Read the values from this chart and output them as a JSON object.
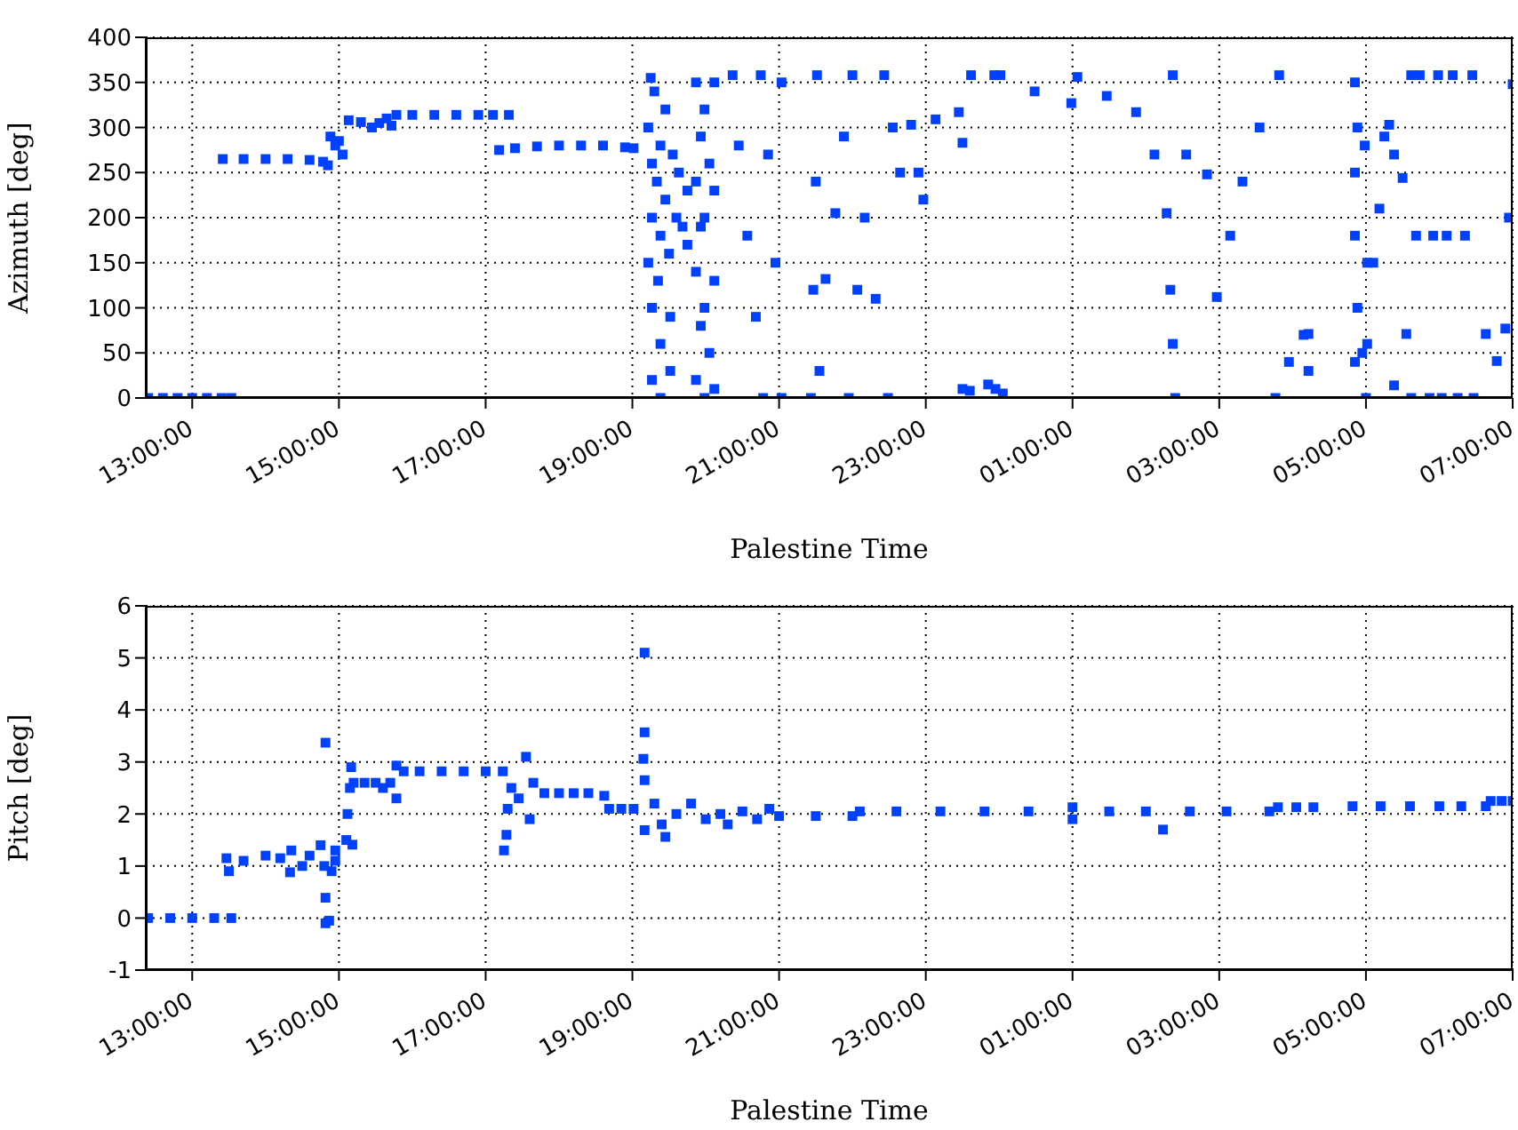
{
  "chart_data": [
    {
      "type": "scatter",
      "ylabel": "Azimuth [deg]",
      "xlabel": "Palestine Time",
      "color": "#0040ff",
      "marker": "square",
      "grid": true,
      "xlim": [
        "2000-01-01T12:22",
        "2000-01-02T07:00"
      ],
      "ylim": [
        0,
        400
      ],
      "yticks": [
        0,
        50,
        100,
        150,
        200,
        250,
        300,
        350,
        400
      ],
      "xticks": [
        {
          "value": "2000-01-01T13:00",
          "label": "13:00:00"
        },
        {
          "value": "2000-01-01T15:00",
          "label": "15:00:00"
        },
        {
          "value": "2000-01-01T17:00",
          "label": "17:00:00"
        },
        {
          "value": "2000-01-01T19:00",
          "label": "19:00:00"
        },
        {
          "value": "2000-01-01T21:00",
          "label": "21:00:00"
        },
        {
          "value": "2000-01-01T23:00",
          "label": "23:00:00"
        },
        {
          "value": "2000-01-02T01:00",
          "label": "01:00:00"
        },
        {
          "value": "2000-01-02T03:00",
          "label": "03:00:00"
        },
        {
          "value": "2000-01-02T05:00",
          "label": "05:00:00"
        },
        {
          "value": "2000-01-02T07:00",
          "label": "07:00:00"
        }
      ],
      "x": [
        "2000-01-01T12:24",
        "2000-01-01T12:36",
        "2000-01-01T12:48",
        "2000-01-01T13:00",
        "2000-01-01T13:12",
        "2000-01-01T13:24",
        "2000-01-01T13:32",
        "2000-01-01T13:25",
        "2000-01-01T13:42",
        "2000-01-01T14:00",
        "2000-01-01T14:18",
        "2000-01-01T14:36",
        "2000-01-01T14:47",
        "2000-01-01T14:51",
        "2000-01-01T14:53",
        "2000-01-01T14:57",
        "2000-01-01T15:00",
        "2000-01-01T15:03",
        "2000-01-01T15:08",
        "2000-01-01T15:18",
        "2000-01-01T15:27",
        "2000-01-01T15:33",
        "2000-01-01T15:43",
        "2000-01-01T15:39",
        "2000-01-01T15:47",
        "2000-01-01T16:00",
        "2000-01-01T16:18",
        "2000-01-01T16:36",
        "2000-01-01T16:54",
        "2000-01-01T17:06",
        "2000-01-01T17:19",
        "2000-01-01T17:11",
        "2000-01-01T17:24",
        "2000-01-01T17:42",
        "2000-01-01T18:00",
        "2000-01-01T18:18",
        "2000-01-01T18:36",
        "2000-01-01T18:54",
        "2000-01-01T19:01",
        "2000-01-01T19:13",
        "2000-01-01T19:13",
        "2000-01-01T19:15",
        "2000-01-01T19:16",
        "2000-01-01T19:16",
        "2000-01-01T19:16",
        "2000-01-01T19:16",
        "2000-01-01T19:18",
        "2000-01-01T19:20",
        "2000-01-01T19:21",
        "2000-01-01T19:23",
        "2000-01-01T19:23",
        "2000-01-01T19:23",
        "2000-01-01T19:23",
        "2000-01-01T19:27",
        "2000-01-01T19:27",
        "2000-01-01T19:30",
        "2000-01-01T19:31",
        "2000-01-01T19:31",
        "2000-01-01T19:33",
        "2000-01-01T19:36",
        "2000-01-01T19:38",
        "2000-01-01T19:41",
        "2000-01-01T19:45",
        "2000-01-01T19:45",
        "2000-01-01T19:52",
        "2000-01-01T19:52",
        "2000-01-01T19:52",
        "2000-01-01T19:52",
        "2000-01-01T19:56",
        "2000-01-01T19:56",
        "2000-01-01T19:56",
        "2000-01-01T19:59",
        "2000-01-01T19:59",
        "2000-01-01T19:59",
        "2000-01-01T19:59",
        "2000-01-01T20:03",
        "2000-01-01T20:03",
        "2000-01-01T20:07",
        "2000-01-01T20:07",
        "2000-01-01T20:07",
        "2000-01-01T20:07",
        "2000-01-01T20:22",
        "2000-01-01T20:27",
        "2000-01-01T20:34",
        "2000-01-01T20:41",
        "2000-01-01T20:47",
        "2000-01-01T20:45",
        "2000-01-01T20:51",
        "2000-01-01T20:57",
        "2000-01-01T21:02",
        "2000-01-01T21:02",
        "2000-01-01T21:26",
        "2000-01-01T21:28",
        "2000-01-01T21:30",
        "2000-01-01T21:31",
        "2000-01-01T21:33",
        "2000-01-01T21:38",
        "2000-01-01T21:46",
        "2000-01-01T21:53",
        "2000-01-01T22:00",
        "2000-01-01T21:57",
        "2000-01-01T22:04",
        "2000-01-01T22:10",
        "2000-01-01T22:19",
        "2000-01-01T22:29",
        "2000-01-01T22:26",
        "2000-01-01T22:33",
        "2000-01-01T22:39",
        "2000-01-01T22:48",
        "2000-01-01T22:54",
        "2000-01-01T22:58",
        "2000-01-01T23:08",
        "2000-01-01T23:27",
        "2000-01-01T23:30",
        "2000-01-01T23:37",
        "2000-01-01T23:56",
        "2000-01-01T23:30",
        "2000-01-01T23:36",
        "2000-01-01T23:51",
        "2000-01-01T23:57",
        "2000-01-02T00:03",
        "2000-01-02T00:01",
        "2000-01-02T00:29",
        "2000-01-02T00:59",
        "2000-01-02T01:04",
        "2000-01-02T01:28",
        "2000-01-02T01:52",
        "2000-01-02T02:07",
        "2000-01-02T02:17",
        "2000-01-02T02:20",
        "2000-01-02T02:22",
        "2000-01-02T02:24",
        "2000-01-02T02:22",
        "2000-01-02T02:33",
        "2000-01-02T02:50",
        "2000-01-02T02:58",
        "2000-01-02T03:09",
        "2000-01-02T03:19",
        "2000-01-02T03:33",
        "2000-01-02T03:49",
        "2000-01-02T03:46",
        "2000-01-02T03:57",
        "2000-01-02T04:09",
        "2000-01-02T04:13",
        "2000-01-02T04:13",
        "2000-01-02T04:51",
        "2000-01-02T04:53",
        "2000-01-02T04:51",
        "2000-01-02T04:51",
        "2000-01-02T04:53",
        "2000-01-02T04:51",
        "2000-01-02T04:57",
        "2000-01-02T05:00",
        "2000-01-02T05:01",
        "2000-01-02T04:59",
        "2000-01-02T05:01",
        "2000-01-02T05:06",
        "2000-01-02T05:11",
        "2000-01-02T05:15",
        "2000-01-02T05:19",
        "2000-01-02T05:23",
        "2000-01-02T05:30",
        "2000-01-02T05:37",
        "2000-01-02T05:23",
        "2000-01-02T05:33",
        "2000-01-02T05:37",
        "2000-01-02T05:41",
        "2000-01-02T05:44",
        "2000-01-02T05:52",
        "2000-01-02T05:55",
        "2000-01-02T05:59",
        "2000-01-02T06:02",
        "2000-01-02T06:06",
        "2000-01-02T06:11",
        "2000-01-02T06:15",
        "2000-01-02T06:21",
        "2000-01-02T06:27",
        "2000-01-02T06:28",
        "2000-01-02T06:38",
        "2000-01-02T06:47",
        "2000-01-02T06:54",
        "2000-01-02T06:57",
        "2000-01-02T07:00"
      ],
      "values": [
        0,
        0,
        0,
        0,
        0,
        0,
        0,
        265,
        265,
        265,
        265,
        264,
        262,
        258,
        290,
        280,
        285,
        270,
        308,
        306,
        300,
        305,
        302,
        310,
        314,
        314,
        314,
        314,
        314,
        314,
        314,
        275,
        277,
        279,
        280,
        280,
        280,
        278,
        277,
        300,
        150,
        355,
        260,
        200,
        100,
        20,
        340,
        240,
        130,
        280,
        180,
        60,
        0,
        320,
        220,
        160,
        90,
        30,
        270,
        200,
        250,
        190,
        230,
        170,
        350,
        240,
        140,
        20,
        290,
        190,
        80,
        320,
        200,
        100,
        0,
        260,
        50,
        350,
        230,
        130,
        10,
        358,
        280,
        180,
        90,
        0,
        358,
        270,
        150,
        0,
        350,
        0,
        120,
        240,
        358,
        30,
        132,
        205,
        290,
        358,
        0,
        120,
        200,
        110,
        0,
        358,
        300,
        250,
        303,
        250,
        220,
        309,
        317,
        283,
        358,
        358,
        10,
        8,
        15,
        10,
        5,
        358,
        340,
        327,
        356,
        335,
        317,
        270,
        205,
        120,
        60,
        0,
        358,
        270,
        248,
        112,
        180,
        240,
        300,
        358,
        0,
        40,
        70,
        71,
        30,
        350,
        300,
        250,
        180,
        100,
        40,
        50,
        0,
        150,
        280,
        60,
        150,
        210,
        290,
        303,
        270,
        244,
        358,
        14,
        71,
        0,
        180,
        358,
        0,
        180,
        358,
        0,
        180,
        358,
        0,
        180,
        358,
        0,
        71,
        41,
        77,
        200,
        348
      ]
    },
    {
      "type": "scatter",
      "ylabel": "Pitch [deg]",
      "xlabel": "Palestine Time",
      "color": "#0040ff",
      "marker": "square",
      "grid": true,
      "xlim": [
        "2000-01-01T12:22",
        "2000-01-02T07:00"
      ],
      "ylim": [
        -1,
        6
      ],
      "yticks": [
        -1,
        0,
        1,
        2,
        3,
        4,
        5,
        6
      ],
      "xticks": [
        {
          "value": "2000-01-01T13:00",
          "label": "13:00:00"
        },
        {
          "value": "2000-01-01T15:00",
          "label": "15:00:00"
        },
        {
          "value": "2000-01-01T17:00",
          "label": "17:00:00"
        },
        {
          "value": "2000-01-01T19:00",
          "label": "19:00:00"
        },
        {
          "value": "2000-01-01T21:00",
          "label": "21:00:00"
        },
        {
          "value": "2000-01-01T23:00",
          "label": "23:00:00"
        },
        {
          "value": "2000-01-02T01:00",
          "label": "01:00:00"
        },
        {
          "value": "2000-01-02T03:00",
          "label": "03:00:00"
        },
        {
          "value": "2000-01-02T05:00",
          "label": "05:00:00"
        },
        {
          "value": "2000-01-02T07:00",
          "label": "07:00:00"
        }
      ],
      "x": [
        "2000-01-01T12:24",
        "2000-01-01T12:42",
        "2000-01-01T13:00",
        "2000-01-01T13:18",
        "2000-01-01T13:32",
        "2000-01-01T13:28",
        "2000-01-01T13:30",
        "2000-01-01T13:42",
        "2000-01-01T14:00",
        "2000-01-01T14:12",
        "2000-01-01T14:20",
        "2000-01-01T14:21",
        "2000-01-01T14:30",
        "2000-01-01T14:36",
        "2000-01-01T14:45",
        "2000-01-01T14:48",
        "2000-01-01T14:49",
        "2000-01-01T14:49",
        "2000-01-01T14:49",
        "2000-01-01T14:52",
        "2000-01-01T14:54",
        "2000-01-01T14:57",
        "2000-01-01T14:57",
        "2000-01-01T15:06",
        "2000-01-01T15:07",
        "2000-01-01T15:09",
        "2000-01-01T15:10",
        "2000-01-01T15:11",
        "2000-01-01T15:12",
        "2000-01-01T15:21",
        "2000-01-01T15:30",
        "2000-01-01T15:36",
        "2000-01-01T15:42",
        "2000-01-01T15:47",
        "2000-01-01T15:47",
        "2000-01-01T15:53",
        "2000-01-01T16:06",
        "2000-01-01T16:24",
        "2000-01-01T16:42",
        "2000-01-01T17:00",
        "2000-01-01T17:14",
        "2000-01-01T17:15",
        "2000-01-01T17:17",
        "2000-01-01T17:18",
        "2000-01-01T17:21",
        "2000-01-01T17:27",
        "2000-01-01T17:33",
        "2000-01-01T17:36",
        "2000-01-01T17:39",
        "2000-01-01T17:48",
        "2000-01-01T18:00",
        "2000-01-01T18:12",
        "2000-01-01T18:24",
        "2000-01-01T18:37",
        "2000-01-01T18:41",
        "2000-01-01T18:51",
        "2000-01-01T19:01",
        "2000-01-01T19:10",
        "2000-01-01T19:10",
        "2000-01-01T19:09",
        "2000-01-01T19:10",
        "2000-01-01T19:10",
        "2000-01-01T19:18",
        "2000-01-01T19:24",
        "2000-01-01T19:27",
        "2000-01-01T19:36",
        "2000-01-01T19:48",
        "2000-01-01T20:00",
        "2000-01-01T20:12",
        "2000-01-01T20:18",
        "2000-01-01T20:30",
        "2000-01-01T20:42",
        "2000-01-01T20:52",
        "2000-01-01T21:00",
        "2000-01-01T21:30",
        "2000-01-01T22:00",
        "2000-01-01T22:06",
        "2000-01-01T22:36",
        "2000-01-01T23:12",
        "2000-01-01T23:48",
        "2000-01-02T00:24",
        "2000-01-02T01:00",
        "2000-01-02T01:00",
        "2000-01-02T01:30",
        "2000-01-02T02:00",
        "2000-01-02T02:14",
        "2000-01-02T02:36",
        "2000-01-02T03:06",
        "2000-01-02T03:41",
        "2000-01-02T03:48",
        "2000-01-02T04:03",
        "2000-01-02T04:17",
        "2000-01-02T04:49",
        "2000-01-02T05:12",
        "2000-01-02T05:36",
        "2000-01-02T06:00",
        "2000-01-02T06:18",
        "2000-01-02T06:38",
        "2000-01-02T06:42",
        "2000-01-02T06:51",
        "2000-01-02T07:00"
      ],
      "values": [
        0,
        0,
        0,
        0,
        0,
        1.15,
        0.9,
        1.1,
        1.2,
        1.15,
        0.88,
        1.3,
        1.0,
        1.2,
        1.4,
        1.0,
        3.37,
        0.39,
        -0.1,
        -0.05,
        0.9,
        1.1,
        1.3,
        1.5,
        2.0,
        2.5,
        2.9,
        1.41,
        2.6,
        2.6,
        2.6,
        2.5,
        2.6,
        2.93,
        2.3,
        2.82,
        2.82,
        2.82,
        2.82,
        2.82,
        2.82,
        1.3,
        1.6,
        2.1,
        2.5,
        2.3,
        3.1,
        1.9,
        2.6,
        2.4,
        2.4,
        2.4,
        2.4,
        2.35,
        2.1,
        2.1,
        2.1,
        5.1,
        3.57,
        3.06,
        2.65,
        1.69,
        2.2,
        1.8,
        1.56,
        2.0,
        2.2,
        1.9,
        2.0,
        1.8,
        2.05,
        1.9,
        2.1,
        1.96,
        1.96,
        1.96,
        2.05,
        2.05,
        2.05,
        2.05,
        2.05,
        2.13,
        1.9,
        2.05,
        2.05,
        1.7,
        2.05,
        2.05,
        2.05,
        2.13,
        2.13,
        2.13,
        2.15,
        2.15,
        2.15,
        2.15,
        2.15,
        2.15,
        2.25,
        2.25,
        2.25
      ]
    }
  ]
}
